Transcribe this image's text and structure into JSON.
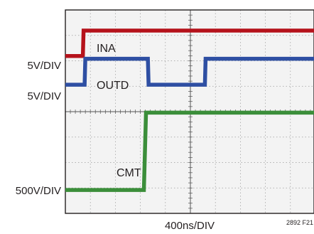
{
  "chart_data": {
    "type": "line",
    "x_label": "400ns/DIV",
    "figure_id": "2892 F21",
    "grid": true,
    "divisions": {
      "x": 10,
      "y": 8
    },
    "traces": [
      {
        "label": "INA",
        "scale": "5V/DIV",
        "color": "#b5121b",
        "low_div": 6.19,
        "high_div": 7.19,
        "step_div": 0.7,
        "segments": []
      },
      {
        "label": "OUTD",
        "scale": "5V/DIV",
        "color": "#2e4fa3",
        "low_div": 5.06,
        "high_div": 6.08,
        "step_div": 0.77,
        "segments": [
          {
            "state": "low",
            "from_div": 3.3,
            "to_div": 5.58
          }
        ]
      },
      {
        "label": "CMT",
        "scale": "500V/DIV",
        "color": "#3b8e3a",
        "low_div": 0.92,
        "high_div": 3.96,
        "step_div": 3.14,
        "segments": []
      }
    ]
  }
}
